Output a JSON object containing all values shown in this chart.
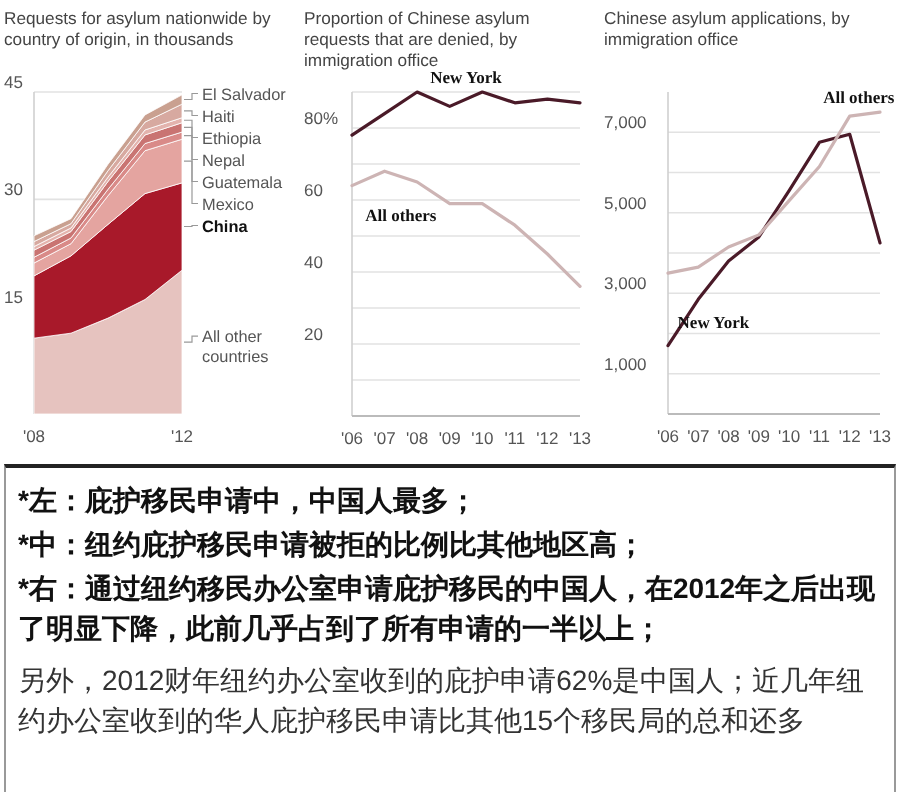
{
  "chart_data": [
    {
      "type": "area",
      "stacked": true,
      "title": "Requests for asylum nationwide by country of origin, in thousands",
      "x": [
        2008,
        2009,
        2010,
        2011,
        2012
      ],
      "xlim": [
        2008,
        2012
      ],
      "xticks": [
        {
          "value": 2008,
          "label": "'08"
        },
        {
          "value": 2012,
          "label": "'12"
        }
      ],
      "ylim": [
        0,
        45
      ],
      "yticks": [
        15,
        30,
        45
      ],
      "grid": "y",
      "series": [
        {
          "name": "All other countries",
          "color": "#e6c3bf",
          "values": [
            10.6,
            11.3,
            13.4,
            16.0,
            20.1
          ]
        },
        {
          "name": "China",
          "color": "#a8192a",
          "values": [
            8.7,
            10.8,
            13.1,
            14.8,
            12.2
          ]
        },
        {
          "name": "Mexico",
          "color": "#e4a4a0",
          "values": [
            1.8,
            1.7,
            4.0,
            6.0,
            6.1
          ]
        },
        {
          "name": "Guatemala",
          "color": "#d98a88",
          "values": [
            0.8,
            0.8,
            0.9,
            1.0,
            1.0
          ]
        },
        {
          "name": "Nepal",
          "color": "#c97472",
          "values": [
            1.0,
            0.9,
            1.1,
            1.2,
            1.3
          ]
        },
        {
          "name": "Ethiopia",
          "color": "#e3b3ad",
          "values": [
            0.5,
            0.5,
            0.6,
            0.7,
            0.7
          ]
        },
        {
          "name": "Haiti",
          "color": "#d7a9a0",
          "values": [
            0.7,
            0.6,
            0.9,
            1.1,
            1.9
          ]
        },
        {
          "name": "El Salvador",
          "color": "#c9a090",
          "values": [
            0.8,
            0.7,
            0.9,
            1.0,
            1.3
          ]
        }
      ]
    },
    {
      "type": "line",
      "title": "Proportion of Chinese asylum requests that are denied, by immigration office",
      "x": [
        2006,
        2007,
        2008,
        2009,
        2010,
        2011,
        2012,
        2013
      ],
      "xlim": [
        2006,
        2013
      ],
      "xticks": [
        {
          "value": 2006,
          "label": "'06"
        },
        {
          "value": 2007,
          "label": "'07"
        },
        {
          "value": 2008,
          "label": "'08"
        },
        {
          "value": 2009,
          "label": "'09"
        },
        {
          "value": 2010,
          "label": "'10"
        },
        {
          "value": 2011,
          "label": "'11"
        },
        {
          "value": 2012,
          "label": "'12"
        },
        {
          "value": 2013,
          "label": "'13"
        }
      ],
      "ylim": [
        0,
        90
      ],
      "yticks": [
        {
          "value": 10,
          "label": null
        },
        20,
        {
          "value": 30,
          "label": null
        },
        40,
        {
          "value": 50,
          "label": null
        },
        60,
        {
          "value": 70,
          "label": null
        },
        {
          "value": 80,
          "label": "80%"
        },
        {
          "value": 90,
          "label": null
        }
      ],
      "grid": "y",
      "series": [
        {
          "name": "New York",
          "color": "#4a1a28",
          "values": [
            78,
            84,
            90,
            86,
            90,
            87,
            88,
            87
          ]
        },
        {
          "name": "All others",
          "color": "#cdb4b4",
          "values": [
            64,
            68,
            65,
            59,
            59,
            53,
            45,
            36
          ]
        }
      ]
    },
    {
      "type": "line",
      "title": "Chinese asylum applications, by immigration office",
      "x": [
        2006,
        2007,
        2008,
        2009,
        2010,
        2011,
        2012,
        2013
      ],
      "xlim": [
        2006,
        2013
      ],
      "xticks": [
        {
          "value": 2006,
          "label": "'06"
        },
        {
          "value": 2007,
          "label": "'07"
        },
        {
          "value": 2008,
          "label": "'08"
        },
        {
          "value": 2009,
          "label": "'09"
        },
        {
          "value": 2010,
          "label": "'10"
        },
        {
          "value": 2011,
          "label": "'11"
        },
        {
          "value": 2012,
          "label": "'12"
        },
        {
          "value": 2013,
          "label": "'13"
        }
      ],
      "ylim": [
        0,
        8000
      ],
      "yticks": [
        {
          "value": 1000,
          "label": "1,000"
        },
        {
          "value": 2000,
          "label": null
        },
        {
          "value": 3000,
          "label": "3,000"
        },
        {
          "value": 4000,
          "label": null
        },
        {
          "value": 5000,
          "label": "5,000"
        },
        {
          "value": 6000,
          "label": null
        },
        {
          "value": 7000,
          "label": "7,000"
        }
      ],
      "grid": "y",
      "series": [
        {
          "name": "New York",
          "color": "#4a1a28",
          "values": [
            1700,
            2850,
            3800,
            4400,
            5550,
            6750,
            6950,
            4250
          ]
        },
        {
          "name": "All others",
          "color": "#cdb4b4",
          "values": [
            3500,
            3650,
            4150,
            4450,
            5300,
            6150,
            7400,
            7500
          ]
        }
      ]
    },
    {
      "type": "other",
      "annotations": [
        "*左：庇护移民申请中，中国人最多；",
        "*中：纽约庇护移民申请被拒的比例比其他地区高；",
        "*右：通过纽约移民办公室申请庇护移民的中国人，在2012年之后出现了明显下降，此前几乎占到了所有申请的一半以上；",
        "另外，2012财年纽约办公室收到的庇护申请62%是中国人；近几年纽约办公室收到的华人庇护移民申请比其他15个移民局的总和还多"
      ]
    }
  ]
}
